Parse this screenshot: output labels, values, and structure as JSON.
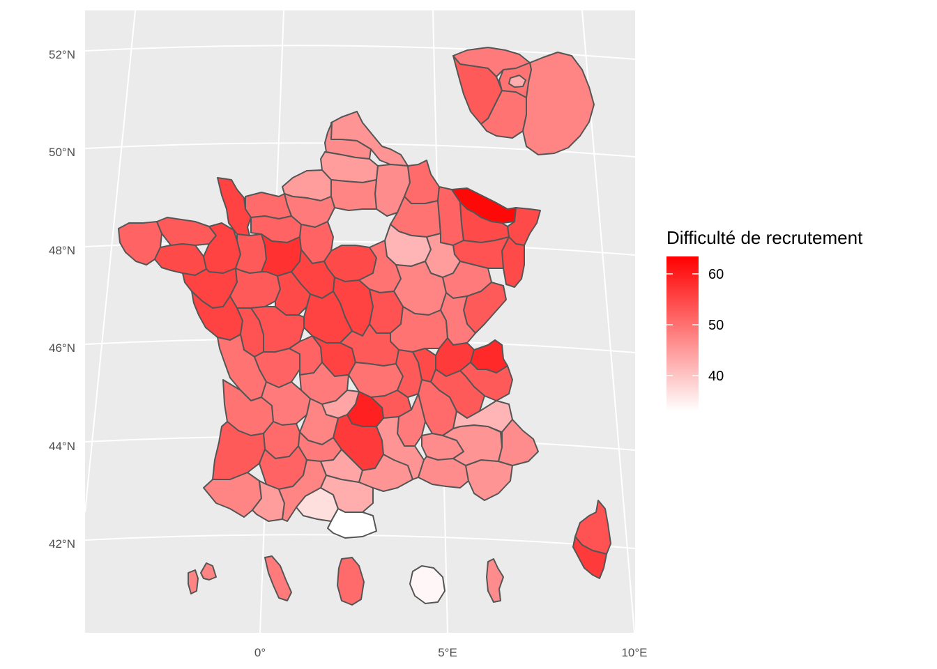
{
  "chart_data": {
    "type": "choropleth",
    "region": "France (départements, Île-de-France inset, DOM insets)",
    "lat_ticks": [
      "42°N",
      "44°N",
      "46°N",
      "48°N",
      "50°N",
      "52°N"
    ],
    "lon_ticks": [
      "0°",
      "5°E",
      "10°E"
    ],
    "legend": {
      "title": "Difficulté de recrutement",
      "ticks": [
        "40",
        "50",
        "60"
      ],
      "range": [
        33,
        64
      ],
      "placement": "right",
      "color_low": "#ffffff",
      "color_high": "#ff0000"
    },
    "panel_background": "#ebebeb",
    "border_color": "#555555",
    "regions": [
      {
        "name": "nord",
        "value": 46
      },
      {
        "name": "pas-de-calais",
        "value": 47
      },
      {
        "name": "somme",
        "value": 45
      },
      {
        "name": "aisne",
        "value": 47
      },
      {
        "name": "oise",
        "value": 48
      },
      {
        "name": "seine-maritime",
        "value": 45
      },
      {
        "name": "eure",
        "value": 49
      },
      {
        "name": "calvados",
        "value": 51
      },
      {
        "name": "manche",
        "value": 56
      },
      {
        "name": "orne",
        "value": 52
      },
      {
        "name": "ardennes",
        "value": 51
      },
      {
        "name": "marne",
        "value": 50
      },
      {
        "name": "meuse",
        "value": 52
      },
      {
        "name": "moselle",
        "value": 63
      },
      {
        "name": "bas-rhin",
        "value": 55
      },
      {
        "name": "haut-rhin",
        "value": 55
      },
      {
        "name": "meurthe-et-moselle",
        "value": 55
      },
      {
        "name": "vosges",
        "value": 54
      },
      {
        "name": "aube",
        "value": 42
      },
      {
        "name": "haute-marne",
        "value": 45
      },
      {
        "name": "finistere",
        "value": 52
      },
      {
        "name": "cotes-d-armor",
        "value": 53
      },
      {
        "name": "morbihan",
        "value": 55
      },
      {
        "name": "ille-et-vilaine",
        "value": 56
      },
      {
        "name": "mayenne",
        "value": 53
      },
      {
        "name": "sarthe",
        "value": 58
      },
      {
        "name": "loire-atlantique",
        "value": 56
      },
      {
        "name": "maine-et-loire",
        "value": 53
      },
      {
        "name": "vendee",
        "value": 56
      },
      {
        "name": "eure-et-loir",
        "value": 52
      },
      {
        "name": "loiret",
        "value": 55
      },
      {
        "name": "loir-et-cher",
        "value": 56
      },
      {
        "name": "indre-et-loire",
        "value": 55
      },
      {
        "name": "cher",
        "value": 56
      },
      {
        "name": "indre",
        "value": 56
      },
      {
        "name": "yonne",
        "value": 50
      },
      {
        "name": "cote-d-or",
        "value": 48
      },
      {
        "name": "nievre",
        "value": 54
      },
      {
        "name": "saone-et-loire",
        "value": 50
      },
      {
        "name": "haute-saone",
        "value": 49
      },
      {
        "name": "doubs",
        "value": 53
      },
      {
        "name": "jura",
        "value": 49
      },
      {
        "name": "deux-sevres",
        "value": 54
      },
      {
        "name": "vienne",
        "value": 54
      },
      {
        "name": "charente-maritime",
        "value": 50
      },
      {
        "name": "charente",
        "value": 52
      },
      {
        "name": "haute-vienne",
        "value": 52
      },
      {
        "name": "creuse",
        "value": 56
      },
      {
        "name": "correze",
        "value": 49
      },
      {
        "name": "allier",
        "value": 53
      },
      {
        "name": "puy-de-dome",
        "value": 50
      },
      {
        "name": "cantal",
        "value": 44
      },
      {
        "name": "haute-loire",
        "value": 53
      },
      {
        "name": "loire",
        "value": 53
      },
      {
        "name": "rhone",
        "value": 55
      },
      {
        "name": "ain",
        "value": 57
      },
      {
        "name": "haute-savoie",
        "value": 59
      },
      {
        "name": "savoie",
        "value": 53
      },
      {
        "name": "isere",
        "value": 53
      },
      {
        "name": "drome",
        "value": 51
      },
      {
        "name": "ardeche",
        "value": 49
      },
      {
        "name": "lozere",
        "value": 60
      },
      {
        "name": "aveyron",
        "value": 57
      },
      {
        "name": "gironde",
        "value": 50
      },
      {
        "name": "dordogne",
        "value": 49
      },
      {
        "name": "lot",
        "value": 48
      },
      {
        "name": "lot-et-garonne",
        "value": 51
      },
      {
        "name": "landes",
        "value": 53
      },
      {
        "name": "tarn-et-garonne",
        "value": 49
      },
      {
        "name": "gers",
        "value": 52
      },
      {
        "name": "pyrenees-atlantiques",
        "value": 48
      },
      {
        "name": "hautes-pyrenees",
        "value": 45
      },
      {
        "name": "haute-garonne",
        "value": 48
      },
      {
        "name": "ariege",
        "value": 37
      },
      {
        "name": "aude",
        "value": 43
      },
      {
        "name": "tarn",
        "value": 44
      },
      {
        "name": "herault",
        "value": 46
      },
      {
        "name": "gard",
        "value": 46
      },
      {
        "name": "pyrenees-orientales",
        "value": 33
      },
      {
        "name": "vaucluse",
        "value": 47
      },
      {
        "name": "bouches-du-rhone",
        "value": 47
      },
      {
        "name": "var",
        "value": 46
      },
      {
        "name": "alpes-de-haute-provence",
        "value": 46
      },
      {
        "name": "hautes-alpes",
        "value": 42
      },
      {
        "name": "alpes-maritimes",
        "value": 47
      },
      {
        "name": "haute-corse",
        "value": 54
      },
      {
        "name": "corse-du-sud",
        "value": 57
      },
      {
        "name": "val-d-oise",
        "value": 49
      },
      {
        "name": "yvelines",
        "value": 53
      },
      {
        "name": "essonne",
        "value": 50
      },
      {
        "name": "seine-et-marne",
        "value": 48
      },
      {
        "name": "paris",
        "value": 43
      },
      {
        "name": "petite-couronne",
        "value": 50
      },
      {
        "name": "guadeloupe",
        "value": 48
      },
      {
        "name": "martinique",
        "value": 49
      },
      {
        "name": "guyane",
        "value": 51
      },
      {
        "name": "la-reunion",
        "value": 34
      },
      {
        "name": "mayotte",
        "value": 47
      }
    ]
  }
}
